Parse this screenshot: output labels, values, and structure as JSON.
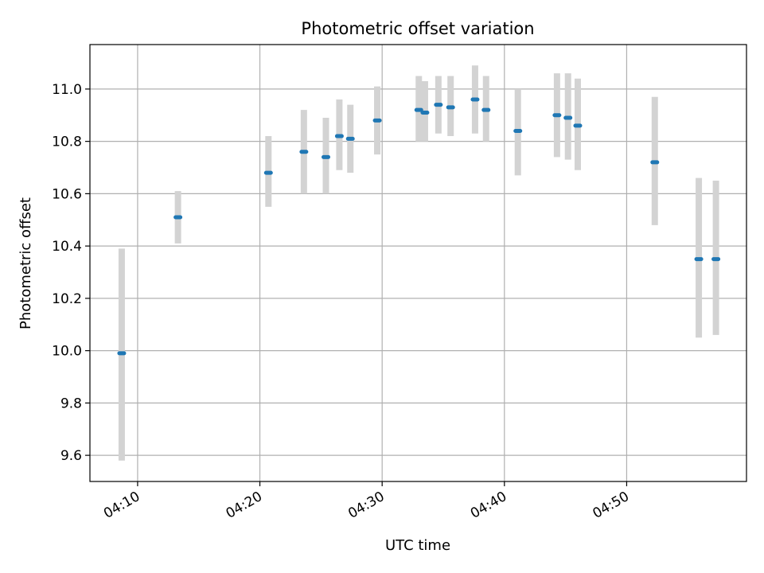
{
  "chart_data": {
    "type": "scatter",
    "title": "Photometric offset variation",
    "xlabel": "UTC time",
    "ylabel": "Photometric offset",
    "x_unit": "minutes after 04:00 UTC",
    "xlim": [
      6.1,
      59.8
    ],
    "ylim": [
      9.5,
      11.17
    ],
    "grid": true,
    "x_ticks": [
      {
        "value": 10,
        "label": "04:10"
      },
      {
        "value": 20,
        "label": "04:20"
      },
      {
        "value": 30,
        "label": "04:30"
      },
      {
        "value": 40,
        "label": "04:40"
      },
      {
        "value": 50,
        "label": "04:50"
      }
    ],
    "y_ticks": [
      {
        "value": 9.6,
        "label": "9.6"
      },
      {
        "value": 9.8,
        "label": "9.8"
      },
      {
        "value": 10.0,
        "label": "10.0"
      },
      {
        "value": 10.2,
        "label": "10.2"
      },
      {
        "value": 10.4,
        "label": "10.4"
      },
      {
        "value": 10.6,
        "label": "10.6"
      },
      {
        "value": 10.8,
        "label": "10.8"
      },
      {
        "value": 11.0,
        "label": "11.0"
      }
    ],
    "marker_color": "#1f77b4",
    "errorbar_color": "#d3d3d3",
    "grid_color": "#b0b0b0",
    "points": [
      {
        "x": 8.7,
        "y": 9.99,
        "yerr_low": 9.58,
        "yerr_high": 10.39
      },
      {
        "x": 13.3,
        "y": 10.51,
        "yerr_low": 10.41,
        "yerr_high": 10.61
      },
      {
        "x": 20.7,
        "y": 10.68,
        "yerr_low": 10.55,
        "yerr_high": 10.82
      },
      {
        "x": 23.6,
        "y": 10.76,
        "yerr_low": 10.6,
        "yerr_high": 10.92
      },
      {
        "x": 25.4,
        "y": 10.74,
        "yerr_low": 10.6,
        "yerr_high": 10.89
      },
      {
        "x": 26.5,
        "y": 10.82,
        "yerr_low": 10.69,
        "yerr_high": 10.96
      },
      {
        "x": 27.4,
        "y": 10.81,
        "yerr_low": 10.68,
        "yerr_high": 10.94
      },
      {
        "x": 29.6,
        "y": 10.88,
        "yerr_low": 10.75,
        "yerr_high": 11.01
      },
      {
        "x": 33.0,
        "y": 10.92,
        "yerr_low": 10.8,
        "yerr_high": 11.05
      },
      {
        "x": 33.5,
        "y": 10.91,
        "yerr_low": 10.8,
        "yerr_high": 11.03
      },
      {
        "x": 34.6,
        "y": 10.94,
        "yerr_low": 10.83,
        "yerr_high": 11.05
      },
      {
        "x": 35.6,
        "y": 10.93,
        "yerr_low": 10.82,
        "yerr_high": 11.05
      },
      {
        "x": 37.6,
        "y": 10.96,
        "yerr_low": 10.83,
        "yerr_high": 11.09
      },
      {
        "x": 38.5,
        "y": 10.92,
        "yerr_low": 10.8,
        "yerr_high": 11.05
      },
      {
        "x": 41.1,
        "y": 10.84,
        "yerr_low": 10.67,
        "yerr_high": 11.0
      },
      {
        "x": 44.3,
        "y": 10.9,
        "yerr_low": 10.74,
        "yerr_high": 11.06
      },
      {
        "x": 45.2,
        "y": 10.89,
        "yerr_low": 10.73,
        "yerr_high": 11.06
      },
      {
        "x": 46.0,
        "y": 10.86,
        "yerr_low": 10.69,
        "yerr_high": 11.04
      },
      {
        "x": 52.3,
        "y": 10.72,
        "yerr_low": 10.48,
        "yerr_high": 10.97
      },
      {
        "x": 55.9,
        "y": 10.35,
        "yerr_low": 10.05,
        "yerr_high": 10.66
      },
      {
        "x": 57.3,
        "y": 10.35,
        "yerr_low": 10.06,
        "yerr_high": 10.65
      }
    ]
  }
}
